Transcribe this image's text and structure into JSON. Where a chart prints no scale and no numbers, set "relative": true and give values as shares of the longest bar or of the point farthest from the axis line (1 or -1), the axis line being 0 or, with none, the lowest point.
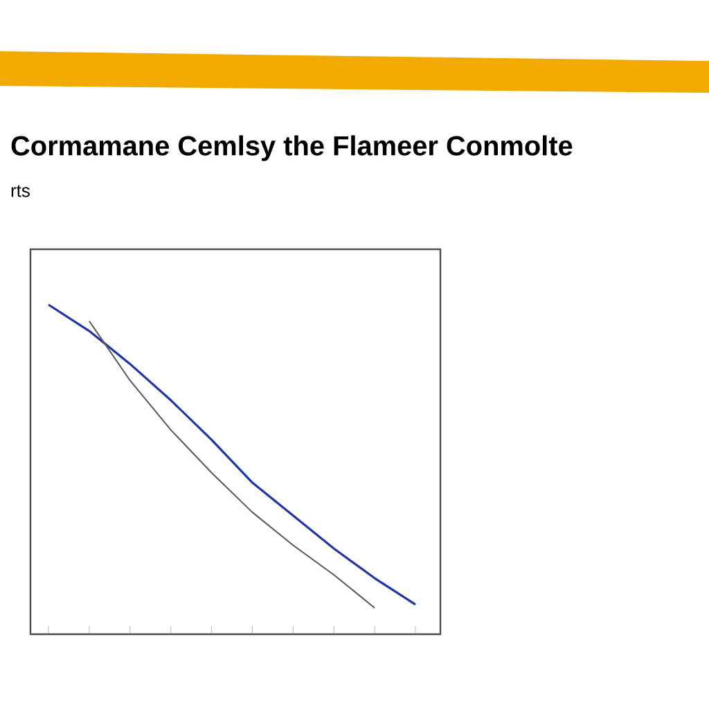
{
  "chart_data": {
    "type": "line",
    "title": "Cormamane Cemlsy the Flameer Conmolte",
    "subtitle": "rts",
    "relative": true,
    "categories": [
      null,
      null,
      null,
      null,
      null,
      null,
      null,
      null,
      null,
      null
    ],
    "series": [
      {
        "color": "#2233aa",
        "values": [
          1,
          0.92,
          0.82,
          0.71,
          0.59,
          0.46,
          0.36,
          0.26,
          0.17,
          0.09
        ]
      },
      {
        "color": "#555555",
        "values": [
          null,
          0.95,
          0.77,
          0.62,
          0.49,
          0.37,
          0.27,
          0.18,
          0.08,
          null
        ]
      }
    ]
  }
}
